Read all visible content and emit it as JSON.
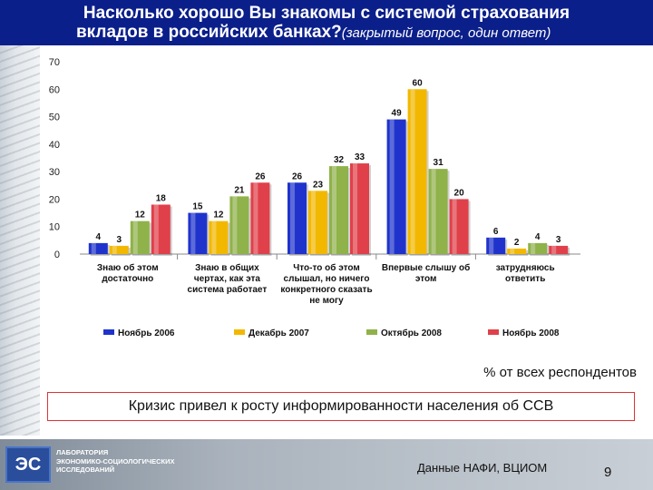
{
  "title": {
    "line1": "Насколько хорошо Вы знакомы с системой страхования",
    "line2_main": "вкладов в российских банках?",
    "line2_sub": "(закрытый вопрос, один ответ)"
  },
  "chart_data": {
    "type": "bar",
    "ylim": [
      0,
      70
    ],
    "yticks": [
      0,
      10,
      20,
      30,
      40,
      50,
      60,
      70
    ],
    "categories": [
      [
        "Знаю об этом",
        "достаточно"
      ],
      [
        "Знаю в общих",
        "чертах, как эта",
        "система работает"
      ],
      [
        "Что-то об этом",
        "слышал, но ничего",
        "конкретного сказать",
        "не могу"
      ],
      [
        "Впервые слышу об",
        "этом"
      ],
      [
        "затрудняюсь",
        "ответить"
      ]
    ],
    "series": [
      {
        "name": "Ноябрь 2006",
        "color": "#1f33cc",
        "values": [
          4,
          15,
          26,
          49,
          6
        ]
      },
      {
        "name": "Декабрь 2007",
        "color": "#f2b800",
        "values": [
          3,
          12,
          23,
          60,
          2
        ]
      },
      {
        "name": "Октябрь 2008",
        "color": "#8fb24a",
        "values": [
          12,
          21,
          32,
          31,
          4
        ]
      },
      {
        "name": "Ноябрь 2008",
        "color": "#e0404a",
        "values": [
          18,
          26,
          33,
          20,
          3
        ]
      }
    ]
  },
  "note": "% от всех респондентов",
  "crisis": "Кризис привел к росту информированности населения об ССВ",
  "logo": {
    "mark": "ЭС",
    "text": [
      "ЛАБОРАТОРИЯ",
      "ЭКОНОМИКО-СОЦИОЛОГИЧЕСКИХ",
      "ИССЛЕДОВАНИЙ"
    ]
  },
  "source": "Данные НАФИ, ВЦИОМ",
  "page_number": "9"
}
